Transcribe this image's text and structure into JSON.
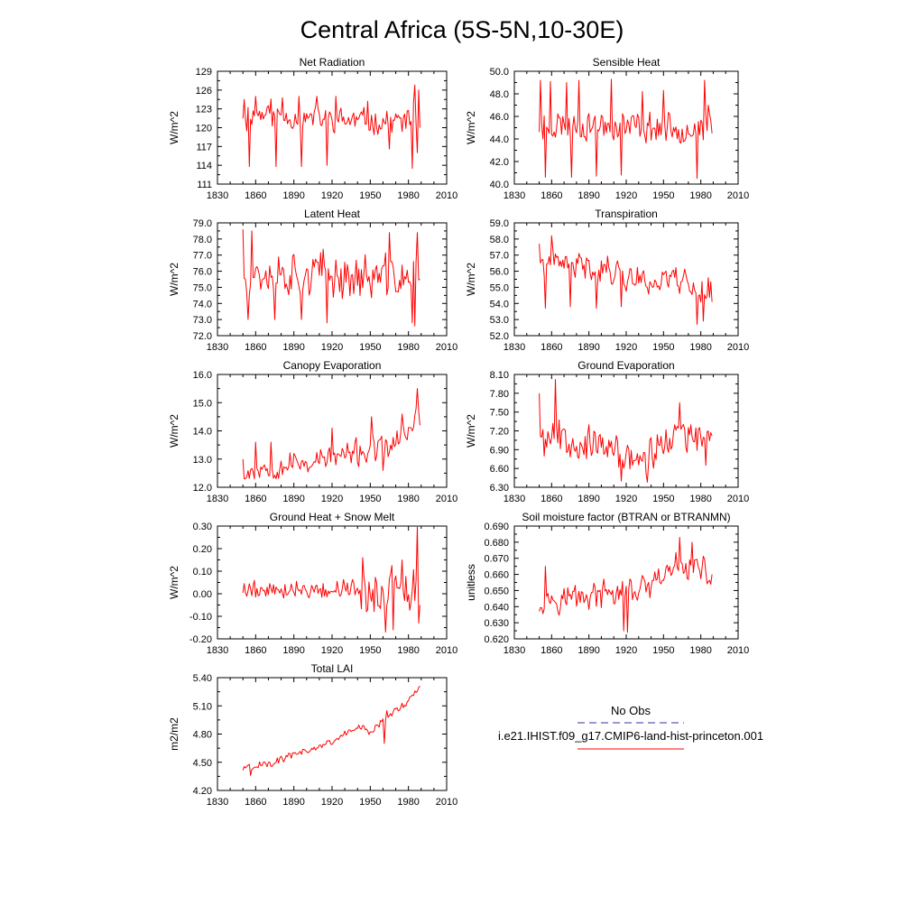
{
  "figure": {
    "title": "Central Africa (5S-5N,10-30E)",
    "line_color": "#ff0000",
    "obs_color": "#3030a0"
  },
  "legend": {
    "obs_label": "No Obs",
    "model_label": "i.e21.IHIST.f09_g17.CMIP6-land-hist-princeton.001"
  },
  "chart_data": [
    {
      "type": "line",
      "title": "Net Radiation",
      "ylabel": "W/m^2",
      "xlim": [
        1830,
        2010
      ],
      "ylim": [
        111,
        129
      ],
      "xticks": [
        1830,
        1860,
        1890,
        1920,
        1950,
        1980,
        2010
      ],
      "yticks": [
        "111",
        "114",
        "117",
        "120",
        "123",
        "126",
        "129"
      ],
      "x_start": 1850,
      "x_end": 1989,
      "y_range": [
        113.5,
        126.8
      ],
      "knots": [
        [
          1850,
          122.5
        ],
        [
          1900,
          121.5
        ],
        [
          1950,
          121.0
        ],
        [
          1989,
          121.0
        ]
      ],
      "spikes": [
        [
          1851,
          124.5
        ],
        [
          1853,
          119.5
        ],
        [
          1855,
          113.8
        ],
        [
          1860,
          125.0
        ],
        [
          1872,
          124.6
        ],
        [
          1876,
          113.8
        ],
        [
          1881,
          124.8
        ],
        [
          1894,
          125.0
        ],
        [
          1896,
          113.8
        ],
        [
          1908,
          125.0
        ],
        [
          1916,
          114.0
        ],
        [
          1923,
          125.0
        ],
        [
          1948,
          124.2
        ],
        [
          1965,
          116.6
        ],
        [
          1983,
          113.5
        ],
        [
          1984,
          124.0
        ],
        [
          1985,
          126.8
        ],
        [
          1987,
          116.0
        ],
        [
          1988,
          126.0
        ],
        [
          1989,
          120.0
        ]
      ],
      "amp": 2.2,
      "noise": 0.4,
      "seed": 11,
      "series": [
        {
          "name": "i.e21.IHIST.f09_g17.CMIP6-land-hist-princeton.001",
          "color": "#ff0000"
        }
      ]
    },
    {
      "type": "line",
      "title": "Sensible Heat",
      "ylabel": "W/m^2",
      "xlim": [
        1830,
        2010
      ],
      "ylim": [
        40.0,
        50.0
      ],
      "xticks": [
        1830,
        1860,
        1890,
        1920,
        1950,
        1980,
        2010
      ],
      "yticks": [
        "40.0",
        "42.0",
        "44.0",
        "46.0",
        "48.0",
        "50.0"
      ],
      "x_start": 1850,
      "x_end": 1989,
      "y_range": [
        40.5,
        49.3
      ],
      "knots": [
        [
          1850,
          45.3
        ],
        [
          1900,
          45.3
        ],
        [
          1950,
          45.0
        ],
        [
          1989,
          45.0
        ]
      ],
      "spikes": [
        [
          1851,
          49.2
        ],
        [
          1853,
          44.0
        ],
        [
          1855,
          40.6
        ],
        [
          1859,
          49.1
        ],
        [
          1872,
          49.0
        ],
        [
          1876,
          40.6
        ],
        [
          1882,
          49.2
        ],
        [
          1896,
          40.7
        ],
        [
          1908,
          49.3
        ],
        [
          1916,
          40.8
        ],
        [
          1933,
          48.2
        ],
        [
          1950,
          48.3
        ],
        [
          1977,
          40.5
        ],
        [
          1983,
          49.2
        ],
        [
          1986,
          47.0
        ],
        [
          1989,
          44.5
        ]
      ],
      "amp": 1.5,
      "noise": 0.4,
      "seed": 23,
      "series": [
        {
          "name": "i.e21.IHIST.f09_g17.CMIP6-land-hist-princeton.001",
          "color": "#ff0000"
        }
      ]
    },
    {
      "type": "line",
      "title": "Latent Heat",
      "ylabel": "W/m^2",
      "xlim": [
        1830,
        2010
      ],
      "ylim": [
        72.0,
        79.0
      ],
      "xticks": [
        1830,
        1860,
        1890,
        1920,
        1950,
        1980,
        2010
      ],
      "yticks": [
        "72.0",
        "73.0",
        "74.0",
        "75.0",
        "76.0",
        "77.0",
        "78.0",
        "79.0"
      ],
      "x_start": 1850,
      "x_end": 1989,
      "y_range": [
        72.5,
        78.6
      ],
      "knots": [
        [
          1850,
          76.0
        ],
        [
          1900,
          75.9
        ],
        [
          1950,
          75.6
        ],
        [
          1989,
          75.5
        ]
      ],
      "spikes": [
        [
          1850,
          78.6
        ],
        [
          1852,
          75.5
        ],
        [
          1854,
          73.0
        ],
        [
          1857,
          78.5
        ],
        [
          1875,
          73.0
        ],
        [
          1896,
          73.0
        ],
        [
          1916,
          72.8
        ],
        [
          1965,
          78.4
        ],
        [
          1983,
          72.8
        ],
        [
          1985,
          72.6
        ],
        [
          1987,
          78.4
        ],
        [
          1989,
          75.5
        ]
      ],
      "amp": 1.5,
      "noise": 0.5,
      "seed": 37,
      "series": [
        {
          "name": "i.e21.IHIST.f09_g17.CMIP6-land-hist-princeton.001",
          "color": "#ff0000"
        }
      ]
    },
    {
      "type": "line",
      "title": "Transpiration",
      "ylabel": "W/m^2",
      "xlim": [
        1830,
        2010
      ],
      "ylim": [
        52.0,
        59.0
      ],
      "xticks": [
        1830,
        1860,
        1890,
        1920,
        1950,
        1980,
        2010
      ],
      "yticks": [
        "52.0",
        "53.0",
        "54.0",
        "55.0",
        "56.0",
        "57.0",
        "58.0",
        "59.0"
      ],
      "x_start": 1850,
      "x_end": 1989,
      "y_range": [
        52.6,
        58.3
      ],
      "knots": [
        [
          1850,
          56.5
        ],
        [
          1900,
          56.2
        ],
        [
          1940,
          55.3
        ],
        [
          1960,
          55.8
        ],
        [
          1970,
          55.2
        ],
        [
          1989,
          54.5
        ]
      ],
      "spikes": [
        [
          1850,
          57.7
        ],
        [
          1855,
          53.7
        ],
        [
          1860,
          58.2
        ],
        [
          1875,
          53.8
        ],
        [
          1896,
          53.7
        ],
        [
          1916,
          53.8
        ],
        [
          1977,
          52.7
        ],
        [
          1982,
          52.9
        ],
        [
          1986,
          55.6
        ],
        [
          1989,
          54.1
        ]
      ],
      "amp": 0.9,
      "noise": 0.35,
      "seed": 41,
      "series": [
        {
          "name": "i.e21.IHIST.f09_g17.CMIP6-land-hist-princeton.001",
          "color": "#ff0000"
        }
      ]
    },
    {
      "type": "line",
      "title": "Canopy Evaporation",
      "ylabel": "W/m^2",
      "xlim": [
        1830,
        2010
      ],
      "ylim": [
        12.0,
        16.0
      ],
      "xticks": [
        1830,
        1860,
        1890,
        1920,
        1950,
        1980,
        2010
      ],
      "yticks": [
        "12.0",
        "13.0",
        "14.0",
        "15.0",
        "16.0"
      ],
      "x_start": 1850,
      "x_end": 1989,
      "y_range": [
        12.3,
        15.5
      ],
      "knots": [
        [
          1850,
          12.6
        ],
        [
          1900,
          12.9
        ],
        [
          1940,
          13.2
        ],
        [
          1965,
          13.4
        ],
        [
          1980,
          14.0
        ],
        [
          1989,
          14.5
        ]
      ],
      "spikes": [
        [
          1850,
          13.0
        ],
        [
          1852,
          12.3
        ],
        [
          1860,
          13.6
        ],
        [
          1872,
          13.6
        ],
        [
          1920,
          14.1
        ],
        [
          1951,
          14.5
        ],
        [
          1960,
          12.6
        ],
        [
          1975,
          14.6
        ],
        [
          1983,
          14.0
        ],
        [
          1987,
          15.5
        ],
        [
          1989,
          14.2
        ]
      ],
      "amp": 0.45,
      "noise": 0.2,
      "seed": 53,
      "series": [
        {
          "name": "i.e21.IHIST.f09_g17.CMIP6-land-hist-princeton.001",
          "color": "#ff0000"
        }
      ]
    },
    {
      "type": "line",
      "title": "Ground Evaporation",
      "ylabel": "W/m^2",
      "xlim": [
        1830,
        2010
      ],
      "ylim": [
        6.3,
        8.1
      ],
      "xticks": [
        1830,
        1860,
        1890,
        1920,
        1950,
        1980,
        2010
      ],
      "yticks": [
        "6.30",
        "6.60",
        "6.90",
        "7.20",
        "7.50",
        "7.80",
        "8.10"
      ],
      "x_start": 1850,
      "x_end": 1989,
      "y_range": [
        6.38,
        8.02
      ],
      "knots": [
        [
          1850,
          7.25
        ],
        [
          1880,
          7.05
        ],
        [
          1920,
          6.8
        ],
        [
          1935,
          6.75
        ],
        [
          1962,
          7.2
        ],
        [
          1975,
          7.0
        ],
        [
          1989,
          7.15
        ]
      ],
      "spikes": [
        [
          1850,
          7.8
        ],
        [
          1852,
          7.1
        ],
        [
          1854,
          6.8
        ],
        [
          1863,
          8.02
        ],
        [
          1916,
          6.4
        ],
        [
          1937,
          6.38
        ],
        [
          1963,
          7.65
        ],
        [
          1984,
          6.65
        ],
        [
          1986,
          7.2
        ],
        [
          1989,
          7.12
        ]
      ],
      "amp": 0.3,
      "noise": 0.1,
      "seed": 67,
      "series": [
        {
          "name": "i.e21.IHIST.f09_g17.CMIP6-land-hist-princeton.001",
          "color": "#ff0000"
        }
      ]
    },
    {
      "type": "line",
      "title": "Ground Heat + Snow Melt",
      "ylabel": "W/m^2",
      "xlim": [
        1830,
        2010
      ],
      "ylim": [
        -0.2,
        0.3
      ],
      "xticks": [
        1830,
        1860,
        1890,
        1920,
        1950,
        1980,
        2010
      ],
      "yticks": [
        "-0.20",
        "-0.10",
        "0.00",
        "0.10",
        "0.20",
        "0.30"
      ],
      "x_start": 1850,
      "x_end": 1989,
      "y_range": [
        -0.17,
        0.3
      ],
      "knots": [
        [
          1850,
          0.02
        ],
        [
          1940,
          0.02
        ],
        [
          1989,
          0.0
        ]
      ],
      "spikes": [
        [
          1944,
          0.16
        ],
        [
          1947,
          -0.08
        ],
        [
          1962,
          -0.17
        ],
        [
          1968,
          -0.16
        ],
        [
          1975,
          0.15
        ],
        [
          1985,
          -0.03
        ],
        [
          1987,
          0.3
        ],
        [
          1988,
          -0.13
        ],
        [
          1989,
          -0.05
        ]
      ],
      "amp": 0.04,
      "noise": 0.02,
      "seed": 79,
      "amp_late": 0.12,
      "late_year": 1942,
      "series": [
        {
          "name": "i.e21.IHIST.f09_g17.CMIP6-land-hist-princeton.001",
          "color": "#ff0000"
        }
      ]
    },
    {
      "type": "line",
      "title": "Soil moisture factor (BTRAN or BTRANMN)",
      "ylabel": "unitless",
      "xlim": [
        1830,
        2010
      ],
      "ylim": [
        0.62,
        0.69
      ],
      "xticks": [
        1830,
        1860,
        1890,
        1920,
        1950,
        1980,
        2010
      ],
      "yticks": [
        "0.620",
        "0.630",
        "0.640",
        "0.650",
        "0.660",
        "0.670",
        "0.680",
        "0.690"
      ],
      "x_start": 1850,
      "x_end": 1989,
      "y_range": [
        0.624,
        0.683
      ],
      "knots": [
        [
          1850,
          0.645
        ],
        [
          1900,
          0.647
        ],
        [
          1940,
          0.651
        ],
        [
          1960,
          0.665
        ],
        [
          1975,
          0.665
        ],
        [
          1989,
          0.657
        ]
      ],
      "spikes": [
        [
          1850,
          0.637
        ],
        [
          1855,
          0.665
        ],
        [
          1918,
          0.625
        ],
        [
          1921,
          0.624
        ],
        [
          1963,
          0.683
        ],
        [
          1973,
          0.68
        ],
        [
          1989,
          0.66
        ]
      ],
      "amp": 0.009,
      "noise": 0.003,
      "seed": 97,
      "series": [
        {
          "name": "i.e21.IHIST.f09_g17.CMIP6-land-hist-princeton.001",
          "color": "#ff0000"
        }
      ]
    },
    {
      "type": "line",
      "title": "Total LAI",
      "ylabel": "m2/m2",
      "xlim": [
        1830,
        2010
      ],
      "ylim": [
        4.2,
        5.4
      ],
      "xticks": [
        1830,
        1860,
        1890,
        1920,
        1950,
        1980,
        2010
      ],
      "yticks": [
        "4.20",
        "4.50",
        "4.80",
        "5.10",
        "5.40"
      ],
      "x_start": 1850,
      "x_end": 1989,
      "y_range": [
        4.36,
        5.32
      ],
      "knots": [
        [
          1850,
          4.43
        ],
        [
          1880,
          4.53
        ],
        [
          1900,
          4.62
        ],
        [
          1920,
          4.72
        ],
        [
          1940,
          4.88
        ],
        [
          1950,
          4.82
        ],
        [
          1960,
          4.95
        ],
        [
          1970,
          5.05
        ],
        [
          1980,
          5.15
        ],
        [
          1989,
          5.32
        ]
      ],
      "spikes": [
        [
          1856,
          4.36
        ],
        [
          1961,
          4.7
        ],
        [
          1963,
          5.05
        ],
        [
          1989,
          5.31
        ]
      ],
      "amp": 0.04,
      "noise": 0.02,
      "seed": 101,
      "series": [
        {
          "name": "i.e21.IHIST.f09_g17.CMIP6-land-hist-princeton.001",
          "color": "#ff0000"
        }
      ]
    }
  ]
}
